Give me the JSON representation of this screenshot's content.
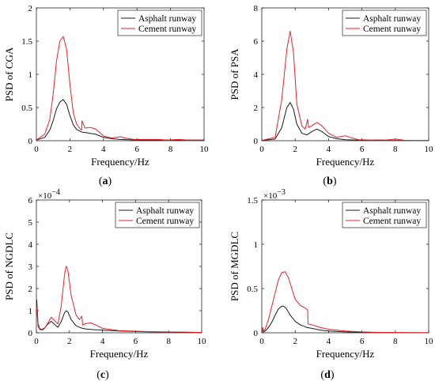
{
  "chart_data": [
    {
      "type": "line",
      "panel_label": "(a)",
      "xlabel": "Frequency/Hz",
      "ylabel": "PSD of CGA",
      "xlim": [
        0,
        10
      ],
      "ylim": [
        0,
        2
      ],
      "xticks": [
        0,
        2,
        4,
        6,
        8,
        10
      ],
      "yticks": [
        0,
        0.5,
        1,
        1.5,
        2
      ],
      "ytick_labels": [
        "0",
        "0.5",
        "1",
        "1.5",
        "2"
      ],
      "exponent_label": "",
      "grid": false,
      "legend_position": "top-right",
      "series": [
        {
          "name": "Asphalt runway",
          "color": "#1a1a1a",
          "x": [
            0,
            0.5,
            0.8,
            1.0,
            1.2,
            1.4,
            1.6,
            1.8,
            2.0,
            2.2,
            2.4,
            2.7,
            3.0,
            3.2,
            3.5,
            3.8,
            4.0,
            4.5,
            5.0,
            6.0,
            7.0,
            8.0,
            9.0,
            10.0
          ],
          "y": [
            0.01,
            0.05,
            0.16,
            0.3,
            0.48,
            0.58,
            0.62,
            0.55,
            0.38,
            0.24,
            0.17,
            0.13,
            0.12,
            0.11,
            0.1,
            0.07,
            0.05,
            0.03,
            0.02,
            0.01,
            0.01,
            0.01,
            0.01,
            0.01
          ]
        },
        {
          "name": "Cement runway",
          "color": "#e8222a",
          "x": [
            0,
            0.5,
            0.8,
            1.0,
            1.2,
            1.4,
            1.6,
            1.8,
            2.0,
            2.2,
            2.4,
            2.6,
            2.7,
            2.72,
            2.9,
            3.2,
            3.5,
            3.8,
            4.0,
            4.5,
            5.0,
            5.3,
            5.8,
            6.5,
            7.0,
            7.3,
            7.8,
            8.5,
            9.0,
            10.0
          ],
          "y": [
            0.01,
            0.1,
            0.32,
            0.7,
            1.2,
            1.5,
            1.57,
            1.38,
            0.85,
            0.42,
            0.25,
            0.18,
            0.16,
            0.3,
            0.19,
            0.2,
            0.18,
            0.12,
            0.07,
            0.04,
            0.06,
            0.04,
            0.02,
            0.02,
            0.02,
            0.02,
            0.01,
            0.02,
            0.01,
            0.01
          ]
        }
      ]
    },
    {
      "type": "line",
      "panel_label": "(b)",
      "xlabel": "Frequency/Hz",
      "ylabel": "PSD of PSA",
      "xlim": [
        0,
        10
      ],
      "ylim": [
        0,
        8
      ],
      "xticks": [
        0,
        2,
        4,
        6,
        8,
        10
      ],
      "yticks": [
        0,
        2,
        4,
        6,
        8
      ],
      "ytick_labels": [
        "0",
        "2",
        "4",
        "6",
        "8"
      ],
      "exponent_label": "",
      "grid": false,
      "legend_position": "top-right",
      "series": [
        {
          "name": "Asphalt runway",
          "color": "#1a1a1a",
          "x": [
            0,
            0.8,
            1.2,
            1.5,
            1.7,
            1.9,
            2.1,
            2.4,
            2.7,
            3.0,
            3.3,
            3.6,
            4.0,
            4.5,
            5.0,
            6.0,
            7.0,
            8.0,
            10.0
          ],
          "y": [
            0.01,
            0.1,
            0.8,
            2.0,
            2.3,
            1.9,
            1.0,
            0.45,
            0.35,
            0.55,
            0.7,
            0.55,
            0.25,
            0.12,
            0.06,
            0.03,
            0.02,
            0.01,
            0.01
          ]
        },
        {
          "name": "Cement runway",
          "color": "#e8222a",
          "x": [
            0,
            0.8,
            1.2,
            1.5,
            1.7,
            1.9,
            2.1,
            2.4,
            2.6,
            2.75,
            2.8,
            3.0,
            3.3,
            3.6,
            4.0,
            4.5,
            5.0,
            5.3,
            5.8,
            6.5,
            7.0,
            7.5,
            8.0,
            8.5,
            9.0,
            10.0
          ],
          "y": [
            0.02,
            0.2,
            2.5,
            5.5,
            6.6,
            5.3,
            2.2,
            0.9,
            0.7,
            1.3,
            0.8,
            0.9,
            1.1,
            0.9,
            0.45,
            0.2,
            0.3,
            0.2,
            0.06,
            0.04,
            0.05,
            0.04,
            0.1,
            0.03,
            0.02,
            0.01
          ]
        }
      ]
    },
    {
      "type": "line",
      "panel_label": "(c)",
      "xlabel": "Frequency/Hz",
      "ylabel": "PSD of  NGDLC",
      "xlim": [
        0,
        10
      ],
      "ylim": [
        0,
        6
      ],
      "xticks": [
        0,
        2,
        4,
        6,
        8,
        10
      ],
      "yticks": [
        0,
        1,
        2,
        3,
        4,
        5,
        6
      ],
      "ytick_labels": [
        "0",
        "1",
        "2",
        "3",
        "4",
        "5",
        "6"
      ],
      "exponent_label": "×10−4",
      "grid": false,
      "legend_position": "top-right",
      "series": [
        {
          "name": "Asphalt runway",
          "color": "#1a1a1a",
          "x": [
            0.02,
            0.1,
            0.2,
            0.35,
            0.5,
            0.7,
            0.9,
            1.1,
            1.3,
            1.5,
            1.7,
            1.8,
            1.9,
            2.1,
            2.4,
            2.7,
            3.0,
            3.5,
            4.0,
            5.0,
            6.0,
            7.0,
            8.0,
            9.0,
            10.0
          ],
          "y": [
            1.5,
            0.4,
            0.18,
            0.15,
            0.22,
            0.4,
            0.52,
            0.38,
            0.25,
            0.5,
            0.9,
            1.0,
            0.95,
            0.6,
            0.32,
            0.22,
            0.17,
            0.14,
            0.12,
            0.08,
            0.06,
            0.04,
            0.03,
            0.02,
            0.01
          ]
        },
        {
          "name": "Cement runway",
          "color": "#e8222a",
          "x": [
            0.02,
            0.1,
            0.2,
            0.35,
            0.5,
            0.7,
            0.9,
            1.1,
            1.3,
            1.5,
            1.7,
            1.8,
            1.9,
            2.1,
            2.4,
            2.6,
            2.75,
            2.8,
            3.0,
            3.3,
            3.6,
            4.0,
            5.0,
            6.0,
            7.0,
            8.0,
            9.0,
            10.0
          ],
          "y": [
            1.2,
            0.3,
            0.15,
            0.12,
            0.2,
            0.45,
            0.7,
            0.55,
            0.4,
            1.2,
            2.6,
            3.0,
            2.85,
            1.7,
            0.8,
            0.6,
            0.75,
            0.35,
            0.42,
            0.45,
            0.35,
            0.2,
            0.1,
            0.07,
            0.05,
            0.04,
            0.03,
            0.02
          ]
        }
      ]
    },
    {
      "type": "line",
      "panel_label": "(d)",
      "xlabel": "Frequency/Hz",
      "ylabel": "PSD of  MGDLC",
      "xlim": [
        0,
        10
      ],
      "ylim": [
        0,
        1.5
      ],
      "xticks": [
        0,
        2,
        4,
        6,
        8,
        10
      ],
      "yticks": [
        0,
        0.5,
        1,
        1.5
      ],
      "ytick_labels": [
        "0",
        "0.5",
        "1",
        "1.5"
      ],
      "exponent_label": "×10−3",
      "grid": false,
      "legend_position": "top-right",
      "series": [
        {
          "name": "Asphalt runway",
          "color": "#1a1a1a",
          "x": [
            0.02,
            0.05,
            0.1,
            0.2,
            0.4,
            0.6,
            0.8,
            1.0,
            1.2,
            1.3,
            1.45,
            1.7,
            2.0,
            2.3,
            2.7,
            3.0,
            3.5,
            4.0,
            5.0,
            6.0,
            7.0,
            8.0,
            10.0
          ],
          "y": [
            0.0,
            0.05,
            0.01,
            0.02,
            0.06,
            0.12,
            0.2,
            0.27,
            0.3,
            0.3,
            0.28,
            0.2,
            0.13,
            0.09,
            0.06,
            0.05,
            0.03,
            0.02,
            0.01,
            0.005,
            0.003,
            0.002,
            0.001
          ]
        },
        {
          "name": "Cement runway",
          "color": "#e8222a",
          "x": [
            0.02,
            0.05,
            0.1,
            0.2,
            0.4,
            0.6,
            0.8,
            1.0,
            1.2,
            1.4,
            1.6,
            1.8,
            2.0,
            2.3,
            2.6,
            2.75,
            2.77,
            3.0,
            3.5,
            4.0,
            5.0,
            6.0,
            7.0,
            8.0,
            10.0
          ],
          "y": [
            0.0,
            0.06,
            0.02,
            0.04,
            0.15,
            0.3,
            0.45,
            0.6,
            0.68,
            0.69,
            0.62,
            0.5,
            0.38,
            0.31,
            0.28,
            0.26,
            0.1,
            0.09,
            0.06,
            0.04,
            0.02,
            0.01,
            0.005,
            0.003,
            0.001
          ]
        }
      ]
    }
  ]
}
